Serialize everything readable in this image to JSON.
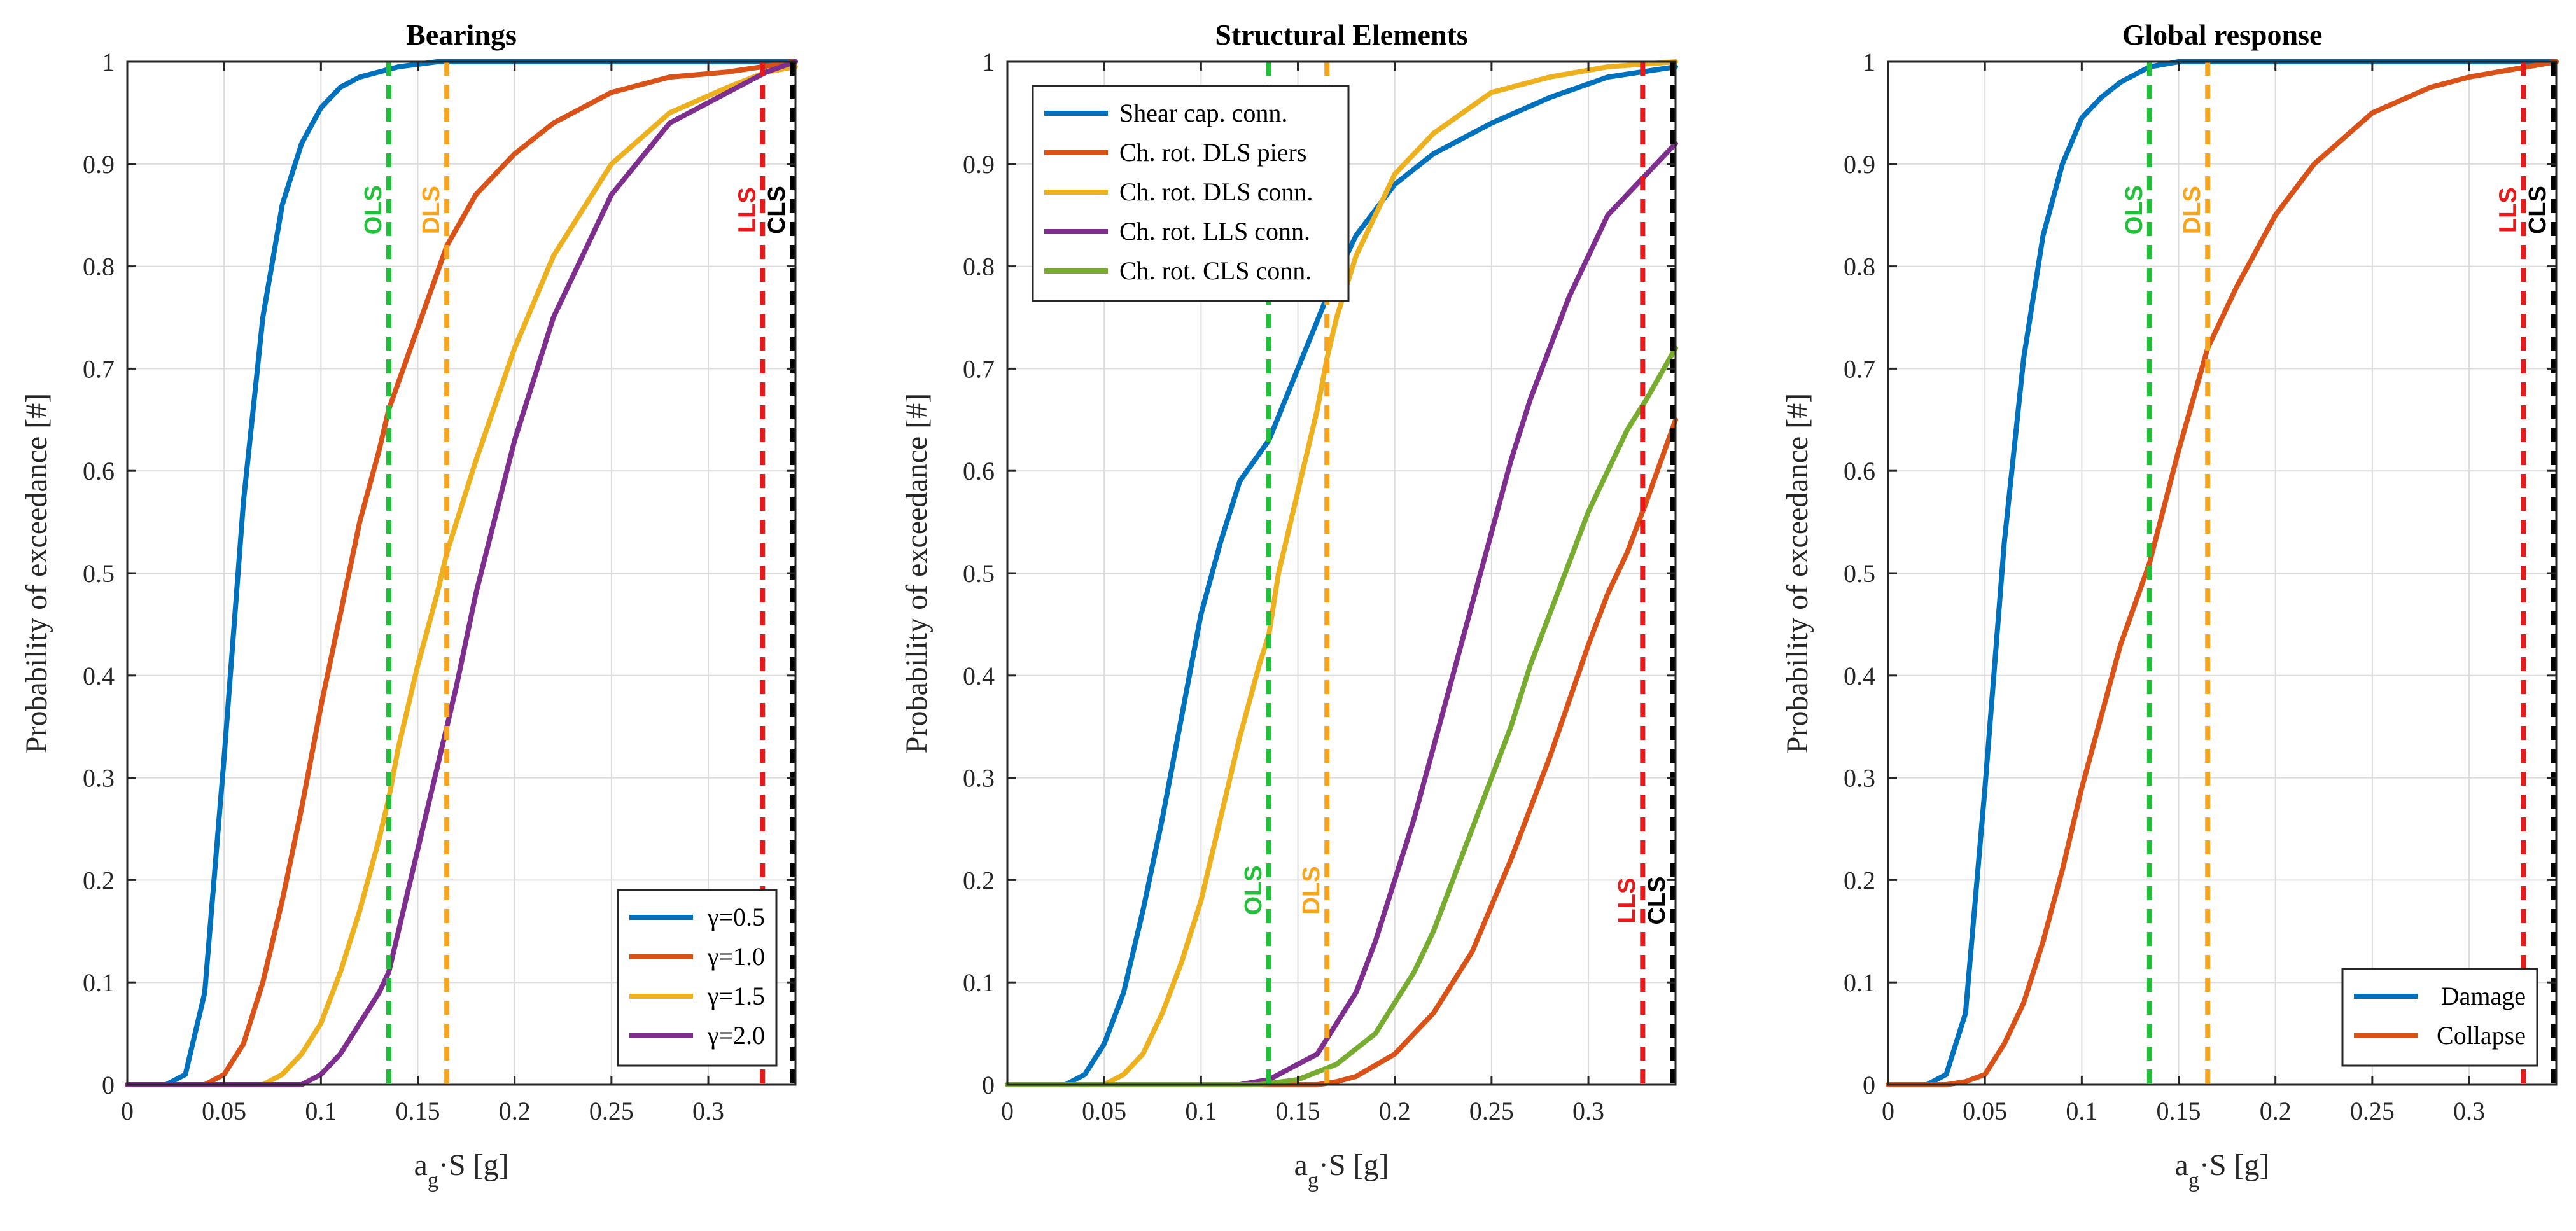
{
  "chart_data": [
    {
      "type": "line",
      "title": "Bearings",
      "xlabel": "a_g·S [g]",
      "ylabel": "Probability of exceedance [#]",
      "xlim": [
        0,
        0.345
      ],
      "ylim": [
        0,
        1
      ],
      "xticks": [
        0,
        0.05,
        0.1,
        0.15,
        0.2,
        0.25,
        0.3
      ],
      "xtick_labels": [
        "0",
        "0.05",
        "0.1",
        "0.15",
        "0.2",
        "0.25",
        "0.3"
      ],
      "yticks": [
        0,
        0.1,
        0.2,
        0.3,
        0.4,
        0.5,
        0.6,
        0.7,
        0.8,
        0.9,
        1
      ],
      "ytick_labels": [
        "0",
        "0.1",
        "0.2",
        "0.3",
        "0.4",
        "0.5",
        "0.6",
        "0.7",
        "0.8",
        "0.9",
        "1"
      ],
      "grid": true,
      "legend": "bottom-right",
      "series": [
        {
          "name": "γ=0.5",
          "color": "#0072BD",
          "x": [
            0,
            0.02,
            0.03,
            0.04,
            0.05,
            0.06,
            0.07,
            0.08,
            0.09,
            0.1,
            0.11,
            0.12,
            0.14,
            0.16,
            0.2,
            0.345
          ],
          "y": [
            0,
            0,
            0.01,
            0.09,
            0.32,
            0.57,
            0.75,
            0.86,
            0.92,
            0.955,
            0.975,
            0.985,
            0.995,
            1,
            1,
            1
          ]
        },
        {
          "name": "γ=1.0",
          "color": "#D95319",
          "x": [
            0,
            0.04,
            0.05,
            0.06,
            0.07,
            0.08,
            0.09,
            0.1,
            0.11,
            0.12,
            0.13,
            0.135,
            0.15,
            0.165,
            0.18,
            0.2,
            0.22,
            0.25,
            0.28,
            0.31,
            0.345
          ],
          "y": [
            0,
            0,
            0.01,
            0.04,
            0.1,
            0.18,
            0.27,
            0.37,
            0.46,
            0.55,
            0.62,
            0.66,
            0.74,
            0.82,
            0.87,
            0.91,
            0.94,
            0.97,
            0.985,
            0.99,
            1
          ]
        },
        {
          "name": "γ=1.5",
          "color": "#EDB120",
          "x": [
            0,
            0.07,
            0.08,
            0.09,
            0.1,
            0.11,
            0.12,
            0.13,
            0.135,
            0.14,
            0.15,
            0.16,
            0.165,
            0.18,
            0.2,
            0.22,
            0.25,
            0.28,
            0.31,
            0.33,
            0.345
          ],
          "y": [
            0,
            0,
            0.01,
            0.03,
            0.06,
            0.11,
            0.17,
            0.24,
            0.28,
            0.33,
            0.41,
            0.48,
            0.52,
            0.61,
            0.72,
            0.81,
            0.9,
            0.95,
            0.975,
            0.99,
            0.995
          ]
        },
        {
          "name": "γ=2.0",
          "color": "#7E2F8E",
          "x": [
            0,
            0.09,
            0.1,
            0.11,
            0.12,
            0.13,
            0.135,
            0.14,
            0.15,
            0.16,
            0.165,
            0.17,
            0.18,
            0.2,
            0.22,
            0.25,
            0.28,
            0.3,
            0.33,
            0.345
          ],
          "y": [
            0,
            0,
            0.01,
            0.03,
            0.06,
            0.09,
            0.11,
            0.15,
            0.23,
            0.31,
            0.35,
            0.39,
            0.48,
            0.63,
            0.75,
            0.87,
            0.94,
            0.96,
            0.99,
            1
          ]
        }
      ],
      "vlines": [
        {
          "label": "OLS",
          "x": 0.135,
          "color": "#22C03A"
        },
        {
          "label": "DLS",
          "x": 0.165,
          "color": "#F7A51E"
        },
        {
          "label": "LLS",
          "x": 0.328,
          "color": "#E8191B"
        },
        {
          "label": "CLS",
          "x": 0.345,
          "color": "#000000"
        }
      ]
    },
    {
      "type": "line",
      "title": "Structural Elements",
      "xlabel": "a_g·S [g]",
      "ylabel": "Probability of exceedance [#]",
      "xlim": [
        0,
        0.345
      ],
      "ylim": [
        0,
        1
      ],
      "xticks": [
        0,
        0.05,
        0.1,
        0.15,
        0.2,
        0.25,
        0.3
      ],
      "xtick_labels": [
        "0",
        "0.05",
        "0.1",
        "0.15",
        "0.2",
        "0.25",
        "0.3"
      ],
      "yticks": [
        0,
        0.1,
        0.2,
        0.3,
        0.4,
        0.5,
        0.6,
        0.7,
        0.8,
        0.9,
        1
      ],
      "ytick_labels": [
        "0",
        "0.1",
        "0.2",
        "0.3",
        "0.4",
        "0.5",
        "0.6",
        "0.7",
        "0.8",
        "0.9",
        "1"
      ],
      "grid": true,
      "legend": "top-left",
      "series": [
        {
          "name": "Shear cap. conn.",
          "color": "#0072BD",
          "x": [
            0,
            0.03,
            0.04,
            0.05,
            0.06,
            0.07,
            0.08,
            0.09,
            0.1,
            0.11,
            0.12,
            0.135,
            0.15,
            0.165,
            0.18,
            0.2,
            0.22,
            0.25,
            0.28,
            0.31,
            0.345
          ],
          "y": [
            0,
            0,
            0.01,
            0.04,
            0.09,
            0.17,
            0.26,
            0.36,
            0.46,
            0.53,
            0.59,
            0.63,
            0.7,
            0.77,
            0.83,
            0.88,
            0.91,
            0.94,
            0.965,
            0.985,
            0.995
          ]
        },
        {
          "name": "Ch. rot. DLS piers",
          "color": "#D95319",
          "x": [
            0,
            0.16,
            0.17,
            0.18,
            0.2,
            0.22,
            0.24,
            0.26,
            0.28,
            0.3,
            0.31,
            0.32,
            0.33,
            0.345
          ],
          "y": [
            0,
            0,
            0.003,
            0.008,
            0.03,
            0.07,
            0.13,
            0.22,
            0.32,
            0.43,
            0.48,
            0.52,
            0.57,
            0.65
          ]
        },
        {
          "name": "Ch. rot. DLS conn.",
          "color": "#EDB120",
          "x": [
            0,
            0.05,
            0.06,
            0.07,
            0.08,
            0.09,
            0.1,
            0.11,
            0.12,
            0.13,
            0.135,
            0.14,
            0.15,
            0.16,
            0.165,
            0.17,
            0.18,
            0.2,
            0.22,
            0.25,
            0.28,
            0.31,
            0.345
          ],
          "y": [
            0,
            0,
            0.01,
            0.03,
            0.07,
            0.12,
            0.18,
            0.26,
            0.34,
            0.41,
            0.44,
            0.5,
            0.58,
            0.66,
            0.71,
            0.75,
            0.81,
            0.89,
            0.93,
            0.97,
            0.985,
            0.995,
            1
          ]
        },
        {
          "name": "Ch. rot. LLS conn.",
          "color": "#7E2F8E",
          "x": [
            0,
            0.12,
            0.135,
            0.15,
            0.16,
            0.17,
            0.18,
            0.19,
            0.2,
            0.21,
            0.22,
            0.23,
            0.24,
            0.25,
            0.26,
            0.27,
            0.28,
            0.29,
            0.3,
            0.31,
            0.32,
            0.33,
            0.345
          ],
          "y": [
            0,
            0,
            0.005,
            0.02,
            0.03,
            0.06,
            0.09,
            0.14,
            0.2,
            0.26,
            0.33,
            0.4,
            0.47,
            0.54,
            0.61,
            0.67,
            0.72,
            0.77,
            0.81,
            0.85,
            0.87,
            0.89,
            0.92
          ]
        },
        {
          "name": "Ch. rot. CLS conn.",
          "color": "#77AC30",
          "x": [
            0,
            0.13,
            0.15,
            0.17,
            0.18,
            0.19,
            0.2,
            0.21,
            0.22,
            0.23,
            0.24,
            0.25,
            0.26,
            0.27,
            0.28,
            0.29,
            0.3,
            0.31,
            0.32,
            0.33,
            0.345
          ],
          "y": [
            0,
            0,
            0.005,
            0.02,
            0.035,
            0.05,
            0.08,
            0.11,
            0.15,
            0.2,
            0.25,
            0.3,
            0.35,
            0.41,
            0.46,
            0.51,
            0.56,
            0.6,
            0.64,
            0.67,
            0.72
          ]
        }
      ],
      "vlines": [
        {
          "label": "OLS",
          "x": 0.135,
          "color": "#22C03A"
        },
        {
          "label": "DLS",
          "x": 0.165,
          "color": "#F7A51E"
        },
        {
          "label": "LLS",
          "x": 0.328,
          "color": "#E8191B"
        },
        {
          "label": "CLS",
          "x": 0.345,
          "color": "#000000"
        }
      ]
    },
    {
      "type": "line",
      "title": "Global response",
      "xlabel": "a_g·S [g]",
      "ylabel": "Probability of exceedance [#]",
      "xlim": [
        0,
        0.345
      ],
      "ylim": [
        0,
        1
      ],
      "xticks": [
        0,
        0.05,
        0.1,
        0.15,
        0.2,
        0.25,
        0.3
      ],
      "xtick_labels": [
        "0",
        "0.05",
        "0.1",
        "0.15",
        "0.2",
        "0.25",
        "0.3"
      ],
      "yticks": [
        0,
        0.1,
        0.2,
        0.3,
        0.4,
        0.5,
        0.6,
        0.7,
        0.8,
        0.9,
        1
      ],
      "ytick_labels": [
        "0",
        "0.1",
        "0.2",
        "0.3",
        "0.4",
        "0.5",
        "0.6",
        "0.7",
        "0.8",
        "0.9",
        "1"
      ],
      "grid": true,
      "legend": "bottom-right",
      "series": [
        {
          "name": "Damage",
          "color": "#0072BD",
          "x": [
            0,
            0.02,
            0.03,
            0.04,
            0.05,
            0.06,
            0.07,
            0.08,
            0.09,
            0.1,
            0.11,
            0.12,
            0.135,
            0.15,
            0.17,
            0.2,
            0.345
          ],
          "y": [
            0,
            0,
            0.01,
            0.07,
            0.29,
            0.53,
            0.71,
            0.83,
            0.9,
            0.945,
            0.965,
            0.98,
            0.995,
            1,
            1,
            1,
            1
          ]
        },
        {
          "name": "Collapse",
          "color": "#D95319",
          "x": [
            0,
            0.03,
            0.04,
            0.05,
            0.06,
            0.07,
            0.08,
            0.09,
            0.1,
            0.11,
            0.12,
            0.135,
            0.15,
            0.165,
            0.18,
            0.2,
            0.22,
            0.25,
            0.28,
            0.3,
            0.33,
            0.345
          ],
          "y": [
            0,
            0,
            0.003,
            0.01,
            0.04,
            0.08,
            0.14,
            0.21,
            0.29,
            0.36,
            0.43,
            0.51,
            0.62,
            0.72,
            0.78,
            0.85,
            0.9,
            0.95,
            0.975,
            0.985,
            0.995,
            1
          ]
        }
      ],
      "vlines": [
        {
          "label": "OLS",
          "x": 0.135,
          "color": "#22C03A"
        },
        {
          "label": "DLS",
          "x": 0.165,
          "color": "#F7A51E"
        },
        {
          "label": "LLS",
          "x": 0.328,
          "color": "#E8191B"
        },
        {
          "label": "CLS",
          "x": 0.345,
          "color": "#000000"
        }
      ]
    }
  ]
}
